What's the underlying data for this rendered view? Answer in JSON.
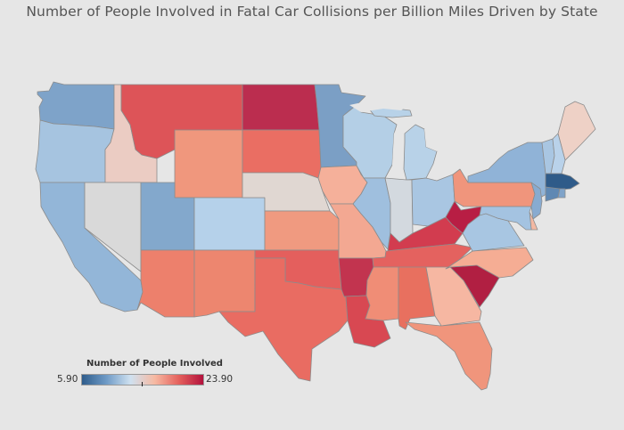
{
  "title": "Number of People Involved in Fatal Car Collisions per Billion Miles Driven by State",
  "legend": {
    "title": "Number of People Involved",
    "min_label": "5.90",
    "max_label": "23.90",
    "colors": [
      "#2f5d8c",
      "#6e9ac6",
      "#cfe1f0",
      "#f6b9a2",
      "#e4605c",
      "#b3123d"
    ]
  },
  "chart_data": {
    "type": "choropleth",
    "title": "Number of People Involved in Fatal Car Collisions per Billion Miles Driven by State",
    "measure": "Number of People Involved",
    "range": [
      5.9,
      23.9
    ],
    "states": [
      {
        "state": "WA",
        "color": "#7ea3c9"
      },
      {
        "state": "OR",
        "color": "#a6c4e0"
      },
      {
        "state": "CA",
        "color": "#93b6d8"
      },
      {
        "state": "ID",
        "color": "#ebccc3"
      },
      {
        "state": "NV",
        "color": "#d9d9d9"
      },
      {
        "state": "MT",
        "color": "#dd5458"
      },
      {
        "state": "WY",
        "color": "#f0977d"
      },
      {
        "state": "UT",
        "color": "#83a8cc"
      },
      {
        "state": "AZ",
        "color": "#ed806c"
      },
      {
        "state": "CO",
        "color": "#b5d1ea"
      },
      {
        "state": "NM",
        "color": "#ed866f"
      },
      {
        "state": "ND",
        "color": "#bb2d4f"
      },
      {
        "state": "SD",
        "color": "#ea6e63"
      },
      {
        "state": "NE",
        "color": "#e0d7d2"
      },
      {
        "state": "KS",
        "color": "#f09a80"
      },
      {
        "state": "OK",
        "color": "#e45f5d"
      },
      {
        "state": "TX",
        "color": "#e96c62"
      },
      {
        "state": "MN",
        "color": "#7b9fc5"
      },
      {
        "state": "IA",
        "color": "#f5b09a"
      },
      {
        "state": "MO",
        "color": "#f3a892"
      },
      {
        "state": "AR",
        "color": "#c2344f"
      },
      {
        "state": "LA",
        "color": "#d84852"
      },
      {
        "state": "WI",
        "color": "#b4cfe6"
      },
      {
        "state": "IL",
        "color": "#9fbfde"
      },
      {
        "state": "MI",
        "color": "#b8d2e8"
      },
      {
        "state": "IN",
        "color": "#d3d9df"
      },
      {
        "state": "OH",
        "color": "#a9c6e2"
      },
      {
        "state": "KY",
        "color": "#d23c4f"
      },
      {
        "state": "TN",
        "color": "#e4625f"
      },
      {
        "state": "MS",
        "color": "#f08d76"
      },
      {
        "state": "AL",
        "color": "#e8705f"
      },
      {
        "state": "GA",
        "color": "#f6b7a2"
      },
      {
        "state": "FL",
        "color": "#f0957c"
      },
      {
        "state": "SC",
        "color": "#b11f42"
      },
      {
        "state": "NC",
        "color": "#f5ad94"
      },
      {
        "state": "VA",
        "color": "#a8c6e2"
      },
      {
        "state": "WV",
        "color": "#b81e44"
      },
      {
        "state": "PA",
        "color": "#f0957c"
      },
      {
        "state": "NY",
        "color": "#90b3d7"
      },
      {
        "state": "ME",
        "color": "#eed1c6"
      },
      {
        "state": "VT",
        "color": "#a9c6e2"
      },
      {
        "state": "NH",
        "color": "#b9d2ea"
      },
      {
        "state": "MA",
        "color": "#2f5b89"
      },
      {
        "state": "CT",
        "color": "#5f88b3"
      },
      {
        "state": "RI",
        "color": "#7fa3c9"
      },
      {
        "state": "NJ",
        "color": "#88abd0"
      },
      {
        "state": "DE",
        "color": "#f3b8a2"
      },
      {
        "state": "MD",
        "color": "#a4c3e1"
      }
    ]
  }
}
